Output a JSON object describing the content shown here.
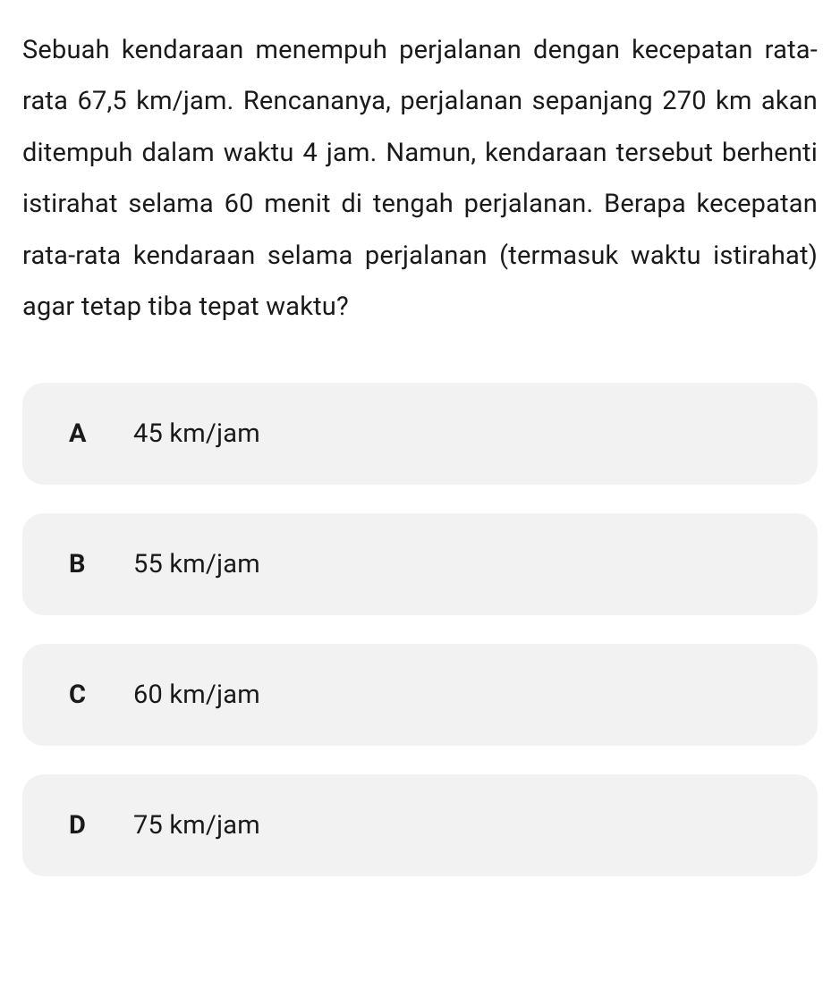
{
  "question": {
    "text": "Sebuah kendaraan menempuh perjalanan dengan kecepatan rata-rata 67,5 km/jam. Rencananya, perjalanan sepanjang 270 km akan ditempuh dalam waktu 4 jam. Namun, kendaraan tersebut berhenti istirahat selama 60 menit di tengah perjalanan. Berapa kecepatan rata-rata kendaraan selama perjalanan (termasuk waktu istirahat) agar tetap tiba tepat waktu?"
  },
  "options": [
    {
      "letter": "A",
      "text": "45 km/jam"
    },
    {
      "letter": "B",
      "text": "55 km/jam"
    },
    {
      "letter": "C",
      "text": "60 km/jam"
    },
    {
      "letter": "D",
      "text": "75 km/jam"
    }
  ],
  "styles": {
    "background_color": "#ffffff",
    "option_background": "#f2f2f2",
    "text_color": "#1a1a1a",
    "question_fontsize": 29,
    "option_fontsize": 29,
    "border_radius": 24
  }
}
